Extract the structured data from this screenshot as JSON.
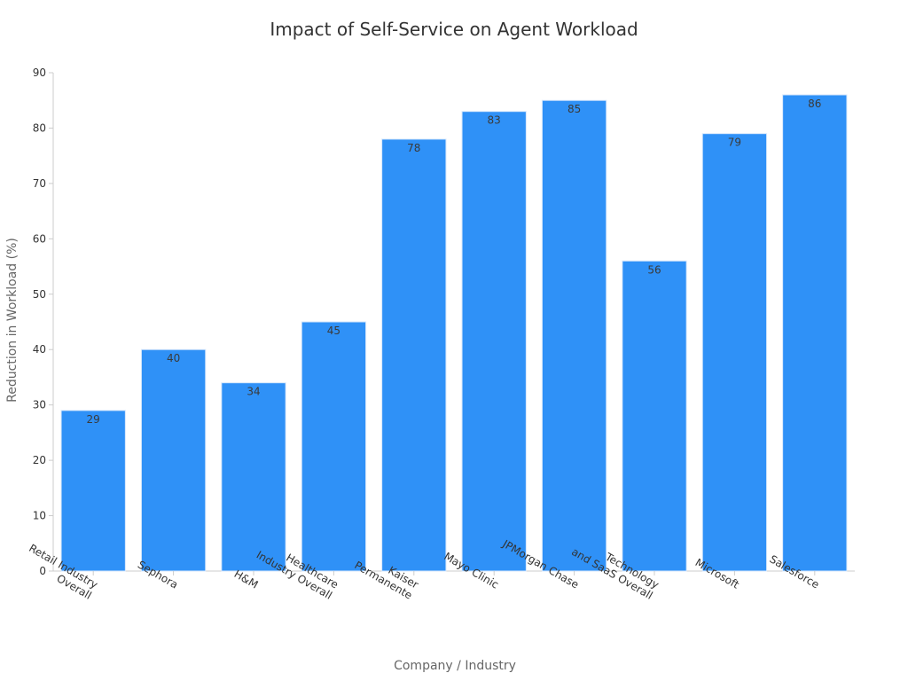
{
  "chart_data": {
    "type": "bar",
    "title": "Impact of Self-Service on Agent Workload",
    "xlabel": "Company / Industry",
    "ylabel": "Reduction in Workload (%)",
    "ylim": [
      0,
      90
    ],
    "yticks": [
      0,
      10,
      20,
      30,
      40,
      50,
      60,
      70,
      80,
      90
    ],
    "categories": [
      [
        "Retail Industry",
        "Overall"
      ],
      [
        "Sephora"
      ],
      [
        "H&M"
      ],
      [
        "Healthcare",
        "Industry Overall"
      ],
      [
        "Kaiser",
        "Permanente"
      ],
      [
        "Mayo Clinic"
      ],
      [
        "JPMorgan Chase"
      ],
      [
        "Technology",
        "and SaaS Overall"
      ],
      [
        "Microsoft"
      ],
      [
        "Salesforce"
      ]
    ],
    "values": [
      29,
      40,
      34,
      45,
      78,
      83,
      85,
      56,
      79,
      86
    ],
    "bar_color": "#2f91f7",
    "grid": false,
    "legend": "none"
  }
}
